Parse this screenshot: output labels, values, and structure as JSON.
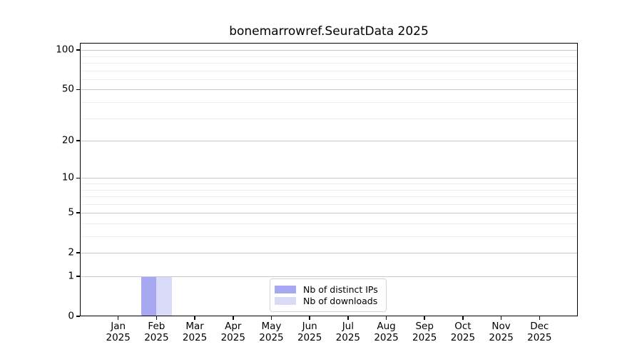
{
  "chart_data": {
    "type": "bar",
    "title": "bonemarrowref.SeuratData 2025",
    "x_tick_months": [
      "Jan",
      "Feb",
      "Mar",
      "Apr",
      "May",
      "Jun",
      "Jul",
      "Aug",
      "Sep",
      "Oct",
      "Nov",
      "Dec"
    ],
    "x_tick_year": "2025",
    "y_ticks": [
      0,
      1,
      2,
      5,
      10,
      20,
      50,
      100
    ],
    "y_minor_gridlines": [
      3,
      4,
      6,
      7,
      8,
      9,
      30,
      40,
      60,
      70,
      80,
      90
    ],
    "y_scale": "log10(1+y)",
    "ylim": [
      0,
      114
    ],
    "grid": "horizontal major+minor",
    "legend_position": "bottom-center",
    "series": [
      {
        "name": "Nb of distinct IPs",
        "color": "#a8a8f2",
        "values": [
          0,
          1,
          0,
          0,
          0,
          0,
          0,
          0,
          0,
          0,
          0,
          0
        ]
      },
      {
        "name": "Nb of downloads",
        "color": "#d9d9f8",
        "values": [
          0,
          1,
          0,
          0,
          0,
          0,
          0,
          0,
          0,
          0,
          0,
          0
        ]
      }
    ]
  },
  "colors": {
    "axis": "#000000",
    "major_grid": "#c8c8c8",
    "minor_grid": "#ededed",
    "background": "#ffffff",
    "legend_border": "#d4d4d4"
  }
}
